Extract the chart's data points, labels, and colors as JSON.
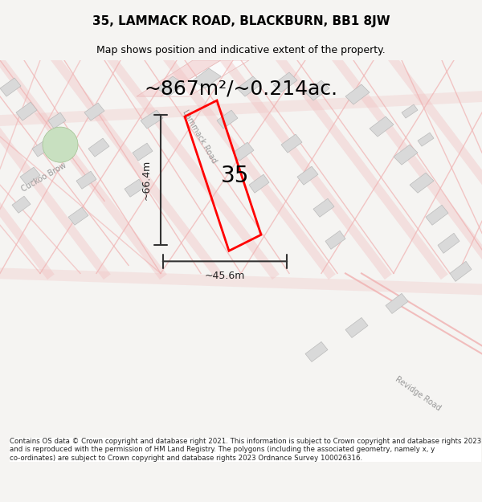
{
  "title": "35, LAMMACK ROAD, BLACKBURN, BB1 8JW",
  "subtitle": "Map shows position and indicative extent of the property.",
  "area_text": "~867m²/~0.214ac.",
  "number_label": "35",
  "width_label": "~45.6m",
  "height_label": "~66.4m",
  "footer_text": "Contains OS data © Crown copyright and database right 2021. This information is subject to Crown copyright and database rights 2023 and is reproduced with the permission of HM Land Registry. The polygons (including the associated geometry, namely x, y co-ordinates) are subject to Crown copyright and database rights 2023 Ordnance Survey 100026316.",
  "bg_color": "#f5f4f2",
  "map_bg": "#ffffff",
  "road_color": "#f4c4c4",
  "building_color": "#d9d9d9",
  "outline_color": "#cccccc",
  "plot_color": "#ff0000",
  "road_text_color": "#888888",
  "title_color": "#000000",
  "dim_color": "#444444",
  "footer_bg": "#ffffff"
}
